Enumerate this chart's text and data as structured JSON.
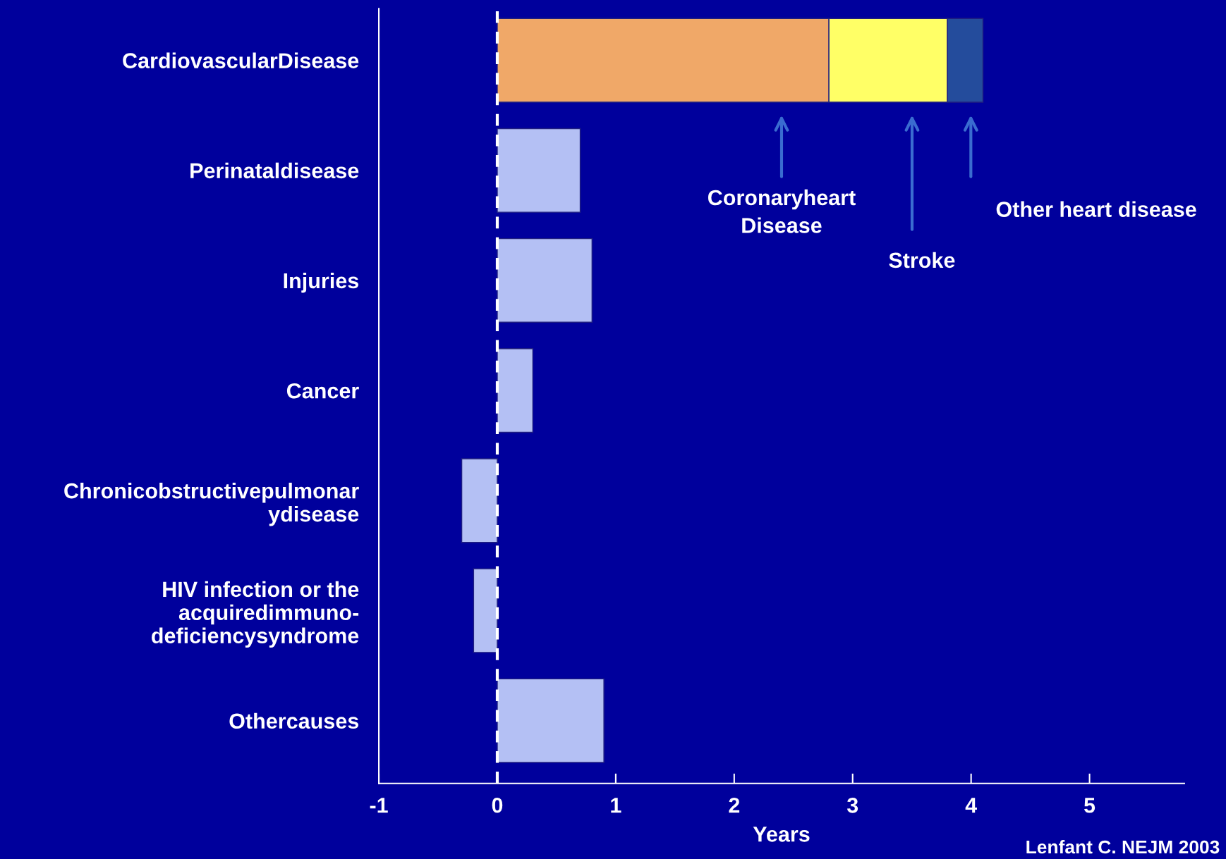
{
  "chart_data": {
    "type": "bar",
    "orientation": "horizontal",
    "stacked": true,
    "categories": [
      "CardiovascularDisease",
      "Perinataldisease",
      "Injuries",
      "Cancer",
      "Chronicobstructivepulmonar\nydisease",
      "HIV infection or the\nacquiredimmuno-\ndeficiencysyndrome",
      "Othercauses"
    ],
    "series": [
      {
        "colors": [
          "#f0a868",
          "#b4c0f4",
          "#b4c0f4",
          "#b4c0f4",
          "#b4c0f4",
          "#b4c0f4",
          "#b4c0f4"
        ],
        "values": [
          2.8,
          0.7,
          0.8,
          0.3,
          -0.3,
          -0.2,
          0.9
        ]
      },
      {
        "color": "#ffff66",
        "values": [
          1.0,
          null,
          null,
          null,
          null,
          null,
          null
        ]
      },
      {
        "color": "#244c9c",
        "values": [
          0.3,
          null,
          null,
          null,
          null,
          null,
          null
        ]
      }
    ],
    "xlim": [
      -1,
      5.8
    ],
    "xticks": [
      -1,
      0,
      1,
      2,
      3,
      4,
      5
    ],
    "xlabel": "Years",
    "grid": false,
    "ref_lines": [
      {
        "axis": "x",
        "value": 0,
        "color": "#ffffff",
        "line_style": "dashed"
      }
    ],
    "annotations": [
      "Coronaryheart\nDisease",
      "Stroke",
      "Other heart disease",
      "Lenfant C. NEJM 2003"
    ]
  }
}
